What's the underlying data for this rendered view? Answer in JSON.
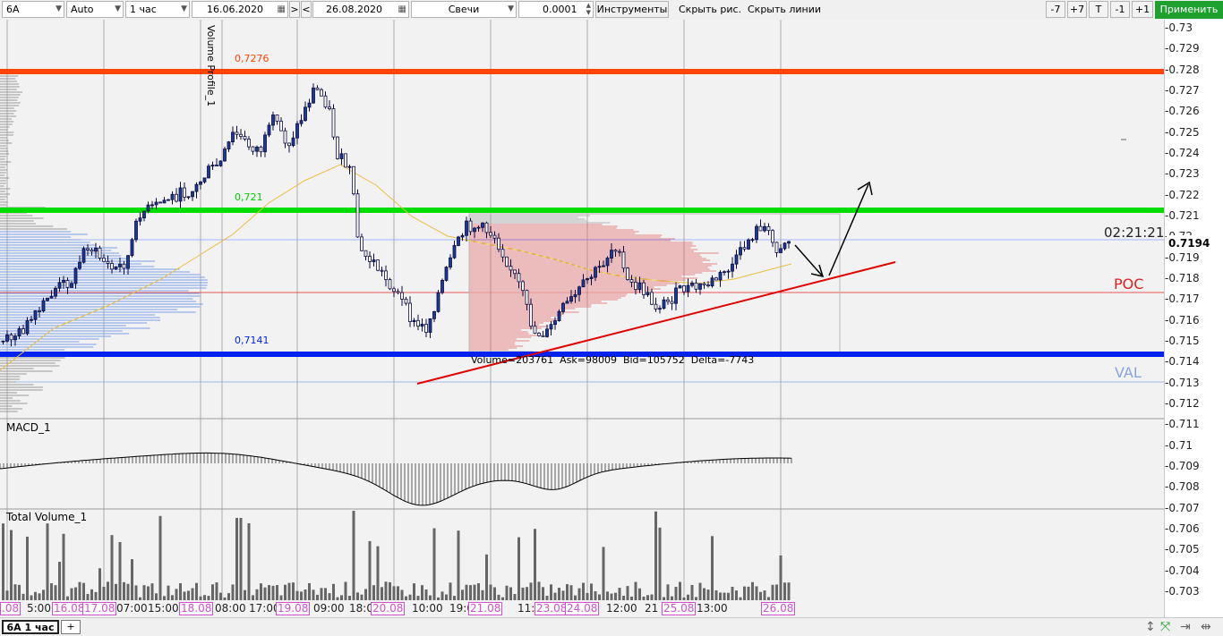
{
  "toolbar": {
    "symbol": "6A",
    "mode": "Auto",
    "timeframe": "1 час",
    "date_from": "16.06.2020",
    "nav_forward": ">",
    "nav_back": "<",
    "date_to": "26.08.2020",
    "chart_style": "Свечи",
    "tick": "0.0001",
    "instruments": "Инструменты",
    "hide_drawings": "Скрыть рис.",
    "hide_lines": "Скрыть линии",
    "minus7": "-7",
    "plus7": "+7",
    "t": "T",
    "minus1": "-1",
    "plus1": "+1",
    "apply": "Применить"
  },
  "chart": {
    "profile_label": "Volume Profile_1",
    "level_top": "0,7276",
    "level_mid": "0,721",
    "level_low": "0,7141",
    "poc": "POC",
    "val": "VAL",
    "clock": "02:21:21",
    "current_price": "0.7194",
    "stats": "Volume=203761  Ask=98009  Bid=105752  Delta=-7743",
    "macd_label": "MACD_1",
    "volume_label": "Total Volume_1",
    "colors": {
      "resistance": "#ff4400",
      "support_green": "#00dd00",
      "support_blue": "#0022ee",
      "poc": "#e02020",
      "val": "#8aa4e0",
      "trendline": "#e00000",
      "ma": "#e8c040"
    }
  },
  "price_axis": {
    "ticks": [
      "-0.73",
      "-0.729",
      "-0.728",
      "-0.727",
      "-0.726",
      "-0.725",
      "-0.724",
      "-0.723",
      "-0.722",
      "-0.721",
      "-0.72",
      "-0.719",
      "-0.718",
      "-0.717",
      "-0.716",
      "-0.715",
      "-0.714",
      "-0.713",
      "-0.712",
      "-0.711",
      "-0.71",
      "-0.709",
      "-0.708",
      "-0.707",
      "-0.706",
      "-0.705",
      "-0.704",
      "-0.703"
    ]
  },
  "time_axis": {
    "labels": [
      {
        "text": ".08",
        "day": true
      },
      {
        "text": "5:00",
        "day": false
      },
      {
        "text": "16.08",
        "day": true
      },
      {
        "text": "17.08",
        "day": true
      },
      {
        "text": "07:00",
        "day": false
      },
      {
        "text": "15:00",
        "day": false
      },
      {
        "text": "18.08",
        "day": true
      },
      {
        "text": "08:00",
        "day": false
      },
      {
        "text": "17:00",
        "day": false
      },
      {
        "text": "19.08",
        "day": true
      },
      {
        "text": "09:00",
        "day": false
      },
      {
        "text": "18:0",
        "day": false
      },
      {
        "text": "20.08",
        "day": true
      },
      {
        "text": "10:00",
        "day": false
      },
      {
        "text": "19:0",
        "day": false
      },
      {
        "text": "21.08",
        "day": true
      },
      {
        "text": "11:0",
        "day": false
      },
      {
        "text": "23.08",
        "day": true
      },
      {
        "text": "24.08",
        "day": true
      },
      {
        "text": "12:00",
        "day": false
      },
      {
        "text": "21",
        "day": false
      },
      {
        "text": "25.08",
        "day": true
      },
      {
        "text": "13:00",
        "day": false
      },
      {
        "text": "26.08",
        "day": true
      }
    ]
  },
  "tabs": {
    "active": "6A 1 час",
    "add": "+"
  }
}
